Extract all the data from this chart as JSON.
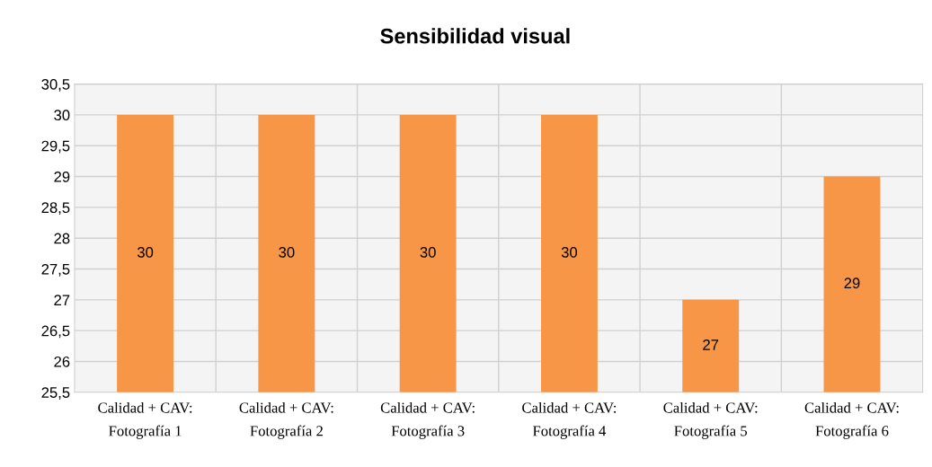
{
  "chart_data": {
    "type": "bar",
    "title": "Sensibilidad visual",
    "categories": [
      "Calidad + CAV:\nFotografía 1",
      "Calidad + CAV:\nFotografía 2",
      "Calidad + CAV:\nFotografía 3",
      "Calidad + CAV:\nFotografía 4",
      "Calidad + CAV:\nFotografía 5",
      "Calidad + CAV:\nFotografía 6"
    ],
    "values": [
      30,
      30,
      30,
      30,
      27,
      29
    ],
    "color": "#f79646",
    "ylim": [
      25.5,
      30.5
    ],
    "yticks": [
      {
        "value": 25.5,
        "label": "25,5"
      },
      26,
      {
        "value": 26.5,
        "label": "26,5"
      },
      27,
      {
        "value": 27.5,
        "label": "27,5"
      },
      28,
      {
        "value": 28.5,
        "label": "28,5"
      },
      29,
      {
        "value": 29.5,
        "label": "29,5"
      },
      30,
      {
        "value": 30.5,
        "label": "30,5"
      }
    ],
    "grid": true,
    "data_labels": true
  }
}
